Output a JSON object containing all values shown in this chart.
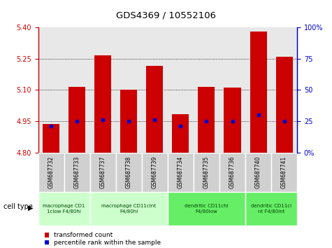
{
  "title": "GDS4369 / 10552106",
  "samples": [
    "GSM687732",
    "GSM687733",
    "GSM687737",
    "GSM687738",
    "GSM687739",
    "GSM687734",
    "GSM687735",
    "GSM687736",
    "GSM687740",
    "GSM687741"
  ],
  "red_values": [
    4.935,
    5.115,
    5.265,
    5.1,
    5.215,
    4.985,
    5.115,
    5.11,
    5.38,
    5.26
  ],
  "blue_values": [
    21,
    25,
    26,
    25,
    26,
    21,
    25,
    25,
    30,
    25
  ],
  "ylim_left": [
    4.8,
    5.4
  ],
  "ylim_right": [
    0,
    100
  ],
  "yticks_left": [
    4.8,
    4.95,
    5.1,
    5.25,
    5.4
  ],
  "yticks_right": [
    0,
    25,
    50,
    75,
    100
  ],
  "ytick_labels_right": [
    "0%",
    "25",
    "50",
    "75",
    "100%"
  ],
  "bar_color": "#cc0000",
  "dot_color": "#0000cc",
  "bg_color": "#e8e8e8",
  "sample_box_color": "#d0d0d0",
  "left_axis_color": "#cc0000",
  "right_axis_color": "#0000cc",
  "cell_type_groups": [
    {
      "label": "macrophage CD1\n1clow F4/80hi",
      "start": 0,
      "end": 2,
      "color": "#ccffcc"
    },
    {
      "label": "macrophage CD11cint\nF4/80hi",
      "start": 2,
      "end": 5,
      "color": "#ccffcc"
    },
    {
      "label": "dendritic CD11chi\nF4/80low",
      "start": 5,
      "end": 8,
      "color": "#66ee66"
    },
    {
      "label": "dendritic CD11ci\nnt F4/80int",
      "start": 8,
      "end": 10,
      "color": "#66ee66"
    }
  ],
  "legend_red_label": "transformed count",
  "legend_blue_label": "percentile rank within the sample",
  "cell_type_label": "cell type"
}
